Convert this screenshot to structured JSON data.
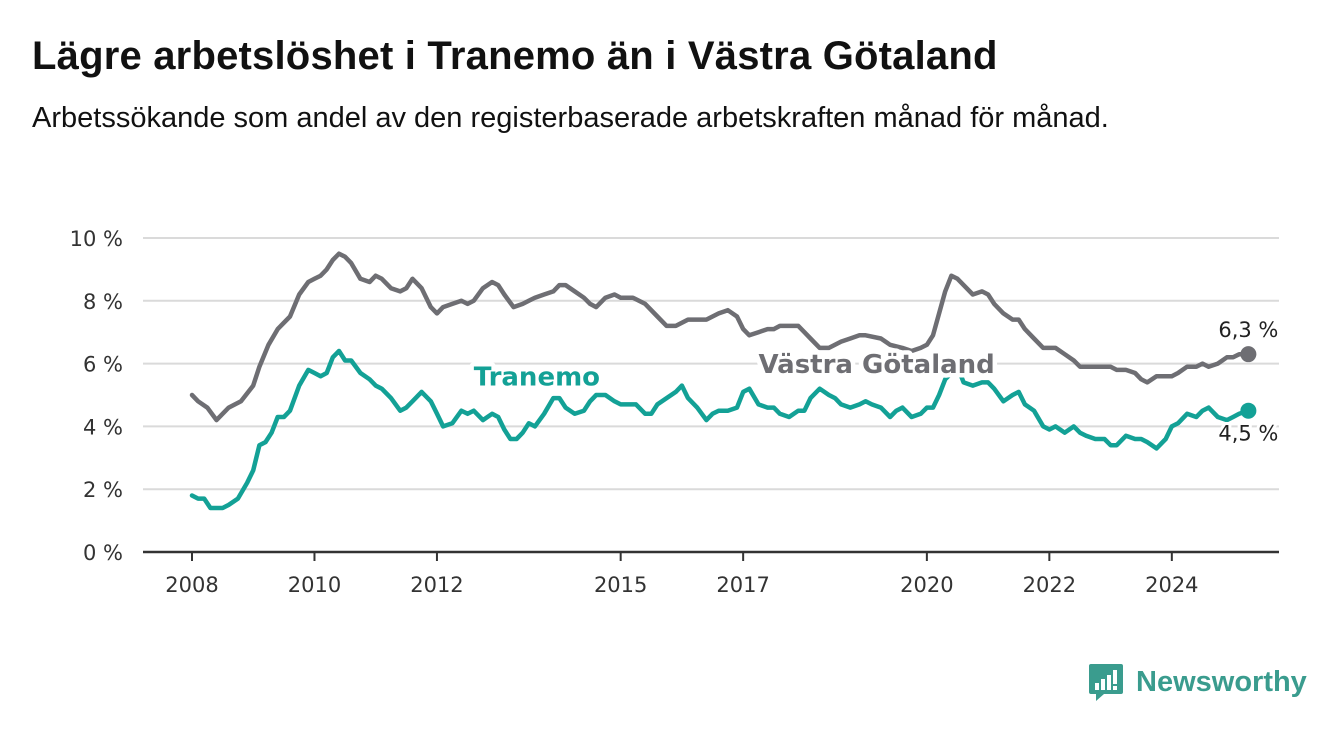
{
  "header": {
    "title": "Lägre arbetslöshet i Tranemo än i Västra Götaland",
    "subtitle": "Arbetssökande som andel av den registerbaserade arbetskraften månad för månad."
  },
  "brand": {
    "name": "Newsworthy",
    "color": "#3a9c8e"
  },
  "chart_data": {
    "type": "line",
    "title": "Lägre arbetslöshet i Tranemo än i Västra Götaland",
    "subtitle": "Arbetssökande som andel av den registerbaserade arbetskraften månad för månad.",
    "xlabel": "",
    "ylabel": "",
    "x_ticks": [
      "2008",
      "2010",
      "2012",
      "2015",
      "2017",
      "2020",
      "2022",
      "2024"
    ],
    "x_tick_years": [
      2008,
      2010,
      2012,
      2015,
      2017,
      2020,
      2022,
      2024
    ],
    "xlim": [
      2007.2,
      2025.75
    ],
    "y_ticks": [
      "0 %",
      "2 %",
      "4 %",
      "6 %",
      "8 %",
      "10 %"
    ],
    "y_tick_values": [
      0,
      2,
      4,
      6,
      8,
      10
    ],
    "ylim": [
      0,
      10
    ],
    "grid": true,
    "legend": "inline labels",
    "series": [
      {
        "name": "Västra Götaland",
        "color": "#6e6e73",
        "label_at": [
          2017.25,
          5.7
        ],
        "end_label": "6,3 %",
        "points": [
          [
            2008.0,
            5.0
          ],
          [
            2008.1,
            4.8
          ],
          [
            2008.25,
            4.6
          ],
          [
            2008.4,
            4.2
          ],
          [
            2008.5,
            4.4
          ],
          [
            2008.6,
            4.6
          ],
          [
            2008.8,
            4.8
          ],
          [
            2009.0,
            5.3
          ],
          [
            2009.1,
            5.9
          ],
          [
            2009.25,
            6.6
          ],
          [
            2009.4,
            7.1
          ],
          [
            2009.6,
            7.5
          ],
          [
            2009.75,
            8.2
          ],
          [
            2009.9,
            8.6
          ],
          [
            2010.0,
            8.7
          ],
          [
            2010.1,
            8.8
          ],
          [
            2010.2,
            9.0
          ],
          [
            2010.3,
            9.3
          ],
          [
            2010.4,
            9.5
          ],
          [
            2010.5,
            9.4
          ],
          [
            2010.6,
            9.2
          ],
          [
            2010.75,
            8.7
          ],
          [
            2010.9,
            8.6
          ],
          [
            2011.0,
            8.8
          ],
          [
            2011.1,
            8.7
          ],
          [
            2011.25,
            8.4
          ],
          [
            2011.4,
            8.3
          ],
          [
            2011.5,
            8.4
          ],
          [
            2011.6,
            8.7
          ],
          [
            2011.75,
            8.4
          ],
          [
            2011.9,
            7.8
          ],
          [
            2012.0,
            7.6
          ],
          [
            2012.1,
            7.8
          ],
          [
            2012.25,
            7.9
          ],
          [
            2012.4,
            8.0
          ],
          [
            2012.5,
            7.9
          ],
          [
            2012.6,
            8.0
          ],
          [
            2012.75,
            8.4
          ],
          [
            2012.9,
            8.6
          ],
          [
            2013.0,
            8.5
          ],
          [
            2013.1,
            8.2
          ],
          [
            2013.25,
            7.8
          ],
          [
            2013.4,
            7.9
          ],
          [
            2013.5,
            8.0
          ],
          [
            2013.6,
            8.1
          ],
          [
            2013.75,
            8.2
          ],
          [
            2013.9,
            8.3
          ],
          [
            2014.0,
            8.5
          ],
          [
            2014.1,
            8.5
          ],
          [
            2014.25,
            8.3
          ],
          [
            2014.4,
            8.1
          ],
          [
            2014.5,
            7.9
          ],
          [
            2014.6,
            7.8
          ],
          [
            2014.75,
            8.1
          ],
          [
            2014.9,
            8.2
          ],
          [
            2015.0,
            8.1
          ],
          [
            2015.2,
            8.1
          ],
          [
            2015.4,
            7.9
          ],
          [
            2015.6,
            7.5
          ],
          [
            2015.75,
            7.2
          ],
          [
            2015.9,
            7.2
          ],
          [
            2016.0,
            7.3
          ],
          [
            2016.1,
            7.4
          ],
          [
            2016.25,
            7.4
          ],
          [
            2016.4,
            7.4
          ],
          [
            2016.6,
            7.6
          ],
          [
            2016.75,
            7.7
          ],
          [
            2016.9,
            7.5
          ],
          [
            2017.0,
            7.1
          ],
          [
            2017.1,
            6.9
          ],
          [
            2017.25,
            7.0
          ],
          [
            2017.4,
            7.1
          ],
          [
            2017.5,
            7.1
          ],
          [
            2017.6,
            7.2
          ],
          [
            2017.75,
            7.2
          ],
          [
            2017.9,
            7.2
          ],
          [
            2018.0,
            7.0
          ],
          [
            2018.1,
            6.8
          ],
          [
            2018.25,
            6.5
          ],
          [
            2018.4,
            6.5
          ],
          [
            2018.6,
            6.7
          ],
          [
            2018.75,
            6.8
          ],
          [
            2018.9,
            6.9
          ],
          [
            2019.0,
            6.9
          ],
          [
            2019.25,
            6.8
          ],
          [
            2019.4,
            6.6
          ],
          [
            2019.6,
            6.5
          ],
          [
            2019.75,
            6.4
          ],
          [
            2019.9,
            6.5
          ],
          [
            2020.0,
            6.6
          ],
          [
            2020.1,
            6.9
          ],
          [
            2020.2,
            7.6
          ],
          [
            2020.3,
            8.3
          ],
          [
            2020.4,
            8.8
          ],
          [
            2020.5,
            8.7
          ],
          [
            2020.6,
            8.5
          ],
          [
            2020.75,
            8.2
          ],
          [
            2020.9,
            8.3
          ],
          [
            2021.0,
            8.2
          ],
          [
            2021.1,
            7.9
          ],
          [
            2021.25,
            7.6
          ],
          [
            2021.4,
            7.4
          ],
          [
            2021.5,
            7.4
          ],
          [
            2021.6,
            7.1
          ],
          [
            2021.75,
            6.8
          ],
          [
            2021.9,
            6.5
          ],
          [
            2022.0,
            6.5
          ],
          [
            2022.1,
            6.5
          ],
          [
            2022.25,
            6.3
          ],
          [
            2022.4,
            6.1
          ],
          [
            2022.5,
            5.9
          ],
          [
            2022.75,
            5.9
          ],
          [
            2023.0,
            5.9
          ],
          [
            2023.1,
            5.8
          ],
          [
            2023.25,
            5.8
          ],
          [
            2023.4,
            5.7
          ],
          [
            2023.5,
            5.5
          ],
          [
            2023.6,
            5.4
          ],
          [
            2023.75,
            5.6
          ],
          [
            2023.9,
            5.6
          ],
          [
            2024.0,
            5.6
          ],
          [
            2024.1,
            5.7
          ],
          [
            2024.25,
            5.9
          ],
          [
            2024.4,
            5.9
          ],
          [
            2024.5,
            6.0
          ],
          [
            2024.6,
            5.9
          ],
          [
            2024.75,
            6.0
          ],
          [
            2024.9,
            6.2
          ],
          [
            2025.0,
            6.2
          ],
          [
            2025.1,
            6.3
          ],
          [
            2025.25,
            6.3
          ]
        ]
      },
      {
        "name": "Tranemo",
        "color": "#13a196",
        "label_at": [
          2012.6,
          5.3
        ],
        "end_label": "4,5 %",
        "points": [
          [
            2008.0,
            1.8
          ],
          [
            2008.1,
            1.7
          ],
          [
            2008.2,
            1.7
          ],
          [
            2008.3,
            1.4
          ],
          [
            2008.5,
            1.4
          ],
          [
            2008.6,
            1.5
          ],
          [
            2008.75,
            1.7
          ],
          [
            2008.9,
            2.2
          ],
          [
            2009.0,
            2.6
          ],
          [
            2009.1,
            3.4
          ],
          [
            2009.2,
            3.5
          ],
          [
            2009.3,
            3.8
          ],
          [
            2009.4,
            4.3
          ],
          [
            2009.5,
            4.3
          ],
          [
            2009.6,
            4.5
          ],
          [
            2009.75,
            5.3
          ],
          [
            2009.9,
            5.8
          ],
          [
            2010.0,
            5.7
          ],
          [
            2010.1,
            5.6
          ],
          [
            2010.2,
            5.7
          ],
          [
            2010.3,
            6.2
          ],
          [
            2010.4,
            6.4
          ],
          [
            2010.5,
            6.1
          ],
          [
            2010.6,
            6.1
          ],
          [
            2010.75,
            5.7
          ],
          [
            2010.9,
            5.5
          ],
          [
            2011.0,
            5.3
          ],
          [
            2011.1,
            5.2
          ],
          [
            2011.25,
            4.9
          ],
          [
            2011.4,
            4.5
          ],
          [
            2011.5,
            4.6
          ],
          [
            2011.6,
            4.8
          ],
          [
            2011.75,
            5.1
          ],
          [
            2011.9,
            4.8
          ],
          [
            2012.0,
            4.4
          ],
          [
            2012.1,
            4.0
          ],
          [
            2012.25,
            4.1
          ],
          [
            2012.4,
            4.5
          ],
          [
            2012.5,
            4.4
          ],
          [
            2012.6,
            4.5
          ],
          [
            2012.75,
            4.2
          ],
          [
            2012.9,
            4.4
          ],
          [
            2013.0,
            4.3
          ],
          [
            2013.1,
            3.9
          ],
          [
            2013.2,
            3.6
          ],
          [
            2013.3,
            3.6
          ],
          [
            2013.4,
            3.8
          ],
          [
            2013.5,
            4.1
          ],
          [
            2013.6,
            4.0
          ],
          [
            2013.75,
            4.4
          ],
          [
            2013.9,
            4.9
          ],
          [
            2014.0,
            4.9
          ],
          [
            2014.1,
            4.6
          ],
          [
            2014.25,
            4.4
          ],
          [
            2014.4,
            4.5
          ],
          [
            2014.5,
            4.8
          ],
          [
            2014.6,
            5.0
          ],
          [
            2014.75,
            5.0
          ],
          [
            2014.9,
            4.8
          ],
          [
            2015.0,
            4.7
          ],
          [
            2015.25,
            4.7
          ],
          [
            2015.4,
            4.4
          ],
          [
            2015.5,
            4.4
          ],
          [
            2015.6,
            4.7
          ],
          [
            2015.75,
            4.9
          ],
          [
            2015.9,
            5.1
          ],
          [
            2016.0,
            5.3
          ],
          [
            2016.1,
            4.9
          ],
          [
            2016.25,
            4.6
          ],
          [
            2016.4,
            4.2
          ],
          [
            2016.5,
            4.4
          ],
          [
            2016.6,
            4.5
          ],
          [
            2016.75,
            4.5
          ],
          [
            2016.9,
            4.6
          ],
          [
            2017.0,
            5.1
          ],
          [
            2017.1,
            5.2
          ],
          [
            2017.25,
            4.7
          ],
          [
            2017.4,
            4.6
          ],
          [
            2017.5,
            4.6
          ],
          [
            2017.6,
            4.4
          ],
          [
            2017.75,
            4.3
          ],
          [
            2017.9,
            4.5
          ],
          [
            2018.0,
            4.5
          ],
          [
            2018.1,
            4.9
          ],
          [
            2018.25,
            5.2
          ],
          [
            2018.4,
            5.0
          ],
          [
            2018.5,
            4.9
          ],
          [
            2018.6,
            4.7
          ],
          [
            2018.75,
            4.6
          ],
          [
            2018.9,
            4.7
          ],
          [
            2019.0,
            4.8
          ],
          [
            2019.1,
            4.7
          ],
          [
            2019.25,
            4.6
          ],
          [
            2019.4,
            4.3
          ],
          [
            2019.5,
            4.5
          ],
          [
            2019.6,
            4.6
          ],
          [
            2019.75,
            4.3
          ],
          [
            2019.9,
            4.4
          ],
          [
            2020.0,
            4.6
          ],
          [
            2020.1,
            4.6
          ],
          [
            2020.2,
            5.0
          ],
          [
            2020.3,
            5.5
          ],
          [
            2020.4,
            5.7
          ],
          [
            2020.5,
            5.9
          ],
          [
            2020.6,
            5.4
          ],
          [
            2020.75,
            5.3
          ],
          [
            2020.9,
            5.4
          ],
          [
            2021.0,
            5.4
          ],
          [
            2021.1,
            5.2
          ],
          [
            2021.25,
            4.8
          ],
          [
            2021.4,
            5.0
          ],
          [
            2021.5,
            5.1
          ],
          [
            2021.6,
            4.7
          ],
          [
            2021.75,
            4.5
          ],
          [
            2021.9,
            4.0
          ],
          [
            2022.0,
            3.9
          ],
          [
            2022.1,
            4.0
          ],
          [
            2022.25,
            3.8
          ],
          [
            2022.4,
            4.0
          ],
          [
            2022.5,
            3.8
          ],
          [
            2022.6,
            3.7
          ],
          [
            2022.75,
            3.6
          ],
          [
            2022.9,
            3.6
          ],
          [
            2023.0,
            3.4
          ],
          [
            2023.1,
            3.4
          ],
          [
            2023.25,
            3.7
          ],
          [
            2023.4,
            3.6
          ],
          [
            2023.5,
            3.6
          ],
          [
            2023.6,
            3.5
          ],
          [
            2023.75,
            3.3
          ],
          [
            2023.9,
            3.6
          ],
          [
            2024.0,
            4.0
          ],
          [
            2024.1,
            4.1
          ],
          [
            2024.25,
            4.4
          ],
          [
            2024.4,
            4.3
          ],
          [
            2024.5,
            4.5
          ],
          [
            2024.6,
            4.6
          ],
          [
            2024.75,
            4.3
          ],
          [
            2024.9,
            4.2
          ],
          [
            2025.0,
            4.3
          ],
          [
            2025.1,
            4.4
          ],
          [
            2025.25,
            4.5
          ]
        ]
      }
    ]
  }
}
